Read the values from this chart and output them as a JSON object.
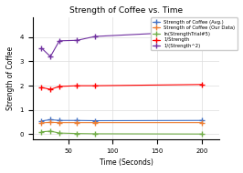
{
  "title": "Strength of Coffee vs. Time",
  "xlabel": "Time (Seconds)",
  "ylabel": "Strength of Coffee",
  "x": [
    20,
    30,
    40,
    60,
    80,
    200
  ],
  "strength_avg": [
    0.55,
    0.6,
    0.57,
    0.57,
    0.56,
    0.57
  ],
  "strength_our": [
    0.47,
    0.49,
    0.48,
    0.48,
    0.48,
    0.48
  ],
  "ln_strength_trail": [
    0.1,
    0.13,
    0.05,
    0.03,
    0.02,
    0.01
  ],
  "inv_strength": [
    1.93,
    1.85,
    1.97,
    2.0,
    2.0,
    2.05
  ],
  "inv_strength2": [
    3.55,
    3.2,
    3.85,
    3.87,
    4.03,
    4.25
  ],
  "colors": {
    "strength_avg": "#4472C4",
    "strength_our": "#ED7D31",
    "ln_strength_trail": "#70AD47",
    "inv_strength": "#FF0000",
    "inv_strength2": "#7030A0"
  },
  "legend_labels": [
    "Strength of Coffee (Avg.)",
    "Strength of Coffee (Our Data)",
    "ln(StrengthTrial#5)",
    "1/Strength",
    "1/(Strength^2)"
  ],
  "ylim": [
    -0.2,
    4.8
  ],
  "xlim": [
    10,
    220
  ],
  "xticks": [
    50,
    100,
    150,
    200
  ],
  "yticks": [
    0,
    1,
    2,
    3,
    4
  ],
  "background_color": "#ffffff",
  "grid_color": "#dddddd"
}
